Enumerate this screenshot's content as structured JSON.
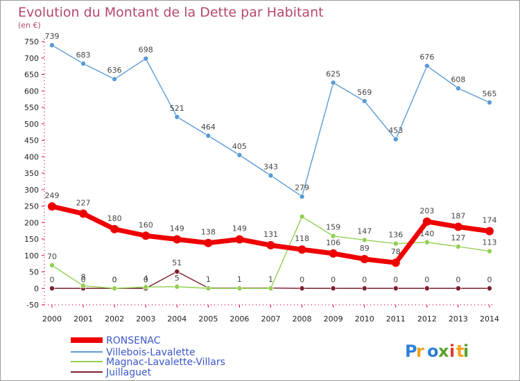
{
  "chart_data": {
    "type": "line",
    "title": "Evolution du Montant de la Dette par Habitant",
    "subtitle": "(en €)",
    "x": [
      "2000",
      "2001",
      "2002",
      "2003",
      "2004",
      "2005",
      "2006",
      "2007",
      "2008",
      "2009",
      "2010",
      "2011",
      "2012",
      "2013",
      "2014"
    ],
    "yticks": [
      "-50",
      "0",
      "50",
      "100",
      "150",
      "200",
      "250",
      "300",
      "350",
      "400",
      "450",
      "500",
      "550",
      "600",
      "650",
      "700",
      "750"
    ],
    "ylim": [
      -50,
      750
    ],
    "grid": false,
    "legend_position": "bottom-left",
    "series": [
      {
        "name": "RONSENAC",
        "color": "#ee0000",
        "values": [
          249,
          227,
          180,
          160,
          149,
          138,
          149,
          131,
          118,
          106,
          89,
          78,
          203,
          187,
          174
        ]
      },
      {
        "name": "Villebois-Lavalette",
        "color": "#5b9bd5",
        "values": [
          739,
          683,
          636,
          698,
          521,
          464,
          405,
          343,
          279,
          625,
          569,
          453,
          676,
          608,
          565
        ]
      },
      {
        "name": "Magnac-Lavalette-Villars",
        "color": "#92d050",
        "values": [
          70,
          8,
          0,
          4,
          5,
          0,
          0,
          0,
          218,
          159,
          147,
          136,
          140,
          127,
          113
        ]
      },
      {
        "name": "Juillaguet",
        "color": "#7b1f2e",
        "values": [
          0,
          0,
          0,
          0,
          51,
          1,
          1,
          1,
          0,
          0,
          0,
          0,
          0,
          0,
          0
        ]
      }
    ],
    "data_labels": {
      "RONSENAC": [
        "249",
        "227",
        "180",
        "160",
        "149",
        "138",
        "149",
        "131",
        "118",
        "106",
        "89",
        "78",
        "203",
        "187",
        "174"
      ],
      "Villebois-Lavalette": [
        "739",
        "683",
        "636",
        "698",
        "521",
        "464",
        "405",
        "343",
        "279",
        "625",
        "569",
        "453",
        "676",
        "608",
        "565"
      ],
      "Magnac-Lavalette-Villars": [
        "70",
        "8",
        "0",
        "4",
        "5",
        "",
        "",
        "",
        "",
        "159",
        "147",
        "136",
        "140",
        "127",
        "113"
      ],
      "Juillaguet": [
        "0",
        "0",
        "0",
        "0",
        "51",
        "1",
        "1",
        "1",
        "0",
        "0",
        "0",
        "0",
        "0",
        "0",
        "0"
      ]
    }
  },
  "logo": {
    "text": "Proxiti",
    "colors": [
      "#2e7fd6",
      "#f0a21b",
      "#2e7fd6",
      "#5aa02c",
      "#e23b2e",
      "#f0a21b",
      "#5aa02c"
    ]
  }
}
